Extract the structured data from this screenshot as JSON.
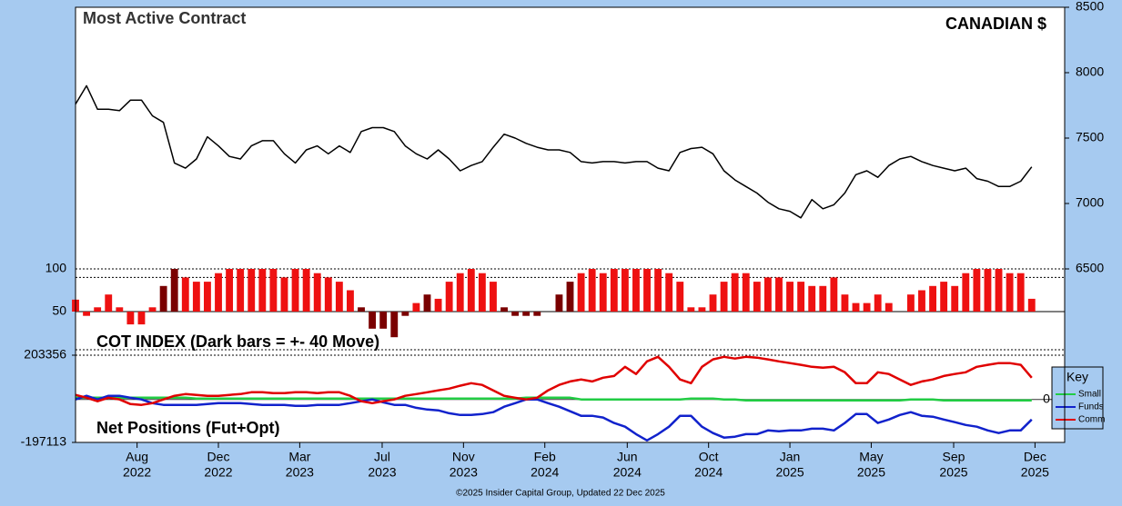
{
  "chart_data": [
    {
      "type": "line",
      "title": "Most Active Contract",
      "subtitle": "CANADIAN $",
      "color": "#000000",
      "xlim": [
        0,
        90
      ],
      "ylim": [
        6500,
        8500
      ],
      "yticks": [
        6500,
        7000,
        7500,
        8000,
        8500
      ],
      "values": [
        7760,
        7900,
        7720,
        7720,
        7710,
        7790,
        7790,
        7670,
        7620,
        7310,
        7270,
        7340,
        7510,
        7440,
        7360,
        7340,
        7440,
        7480,
        7480,
        7380,
        7310,
        7410,
        7440,
        7380,
        7440,
        7390,
        7550,
        7580,
        7580,
        7550,
        7440,
        7380,
        7340,
        7410,
        7340,
        7250,
        7290,
        7320,
        7430,
        7530,
        7500,
        7460,
        7430,
        7410,
        7410,
        7390,
        7320,
        7310,
        7320,
        7320,
        7310,
        7320,
        7320,
        7270,
        7250,
        7390,
        7420,
        7430,
        7380,
        7250,
        7180,
        7130,
        7080,
        7010,
        6960,
        6940,
        6890,
        7030,
        6960,
        6990,
        7080,
        7220,
        7250,
        7200,
        7290,
        7340,
        7360,
        7320,
        7290,
        7270,
        7250,
        7270,
        7190,
        7170,
        7130,
        7130,
        7170,
        7280
      ]
    },
    {
      "type": "bar",
      "title": "COT INDEX (Dark bars = +- 40 Move)",
      "color": "#ee1111",
      "dark_color": "#7a0000",
      "dark_bars": [
        8,
        9,
        26,
        27,
        28,
        29,
        30,
        32,
        39,
        40,
        41,
        42,
        43,
        44,
        45
      ],
      "baseline": 50,
      "hlines": [
        90
      ],
      "xlim": [
        0,
        90
      ],
      "ylim": [
        0,
        100
      ],
      "yticks": [
        50,
        100
      ],
      "values": [
        64,
        45,
        55,
        70,
        55,
        35,
        35,
        55,
        80,
        100,
        90,
        85,
        85,
        95,
        100,
        100,
        100,
        100,
        100,
        90,
        100,
        100,
        95,
        90,
        85,
        75,
        55,
        30,
        30,
        20,
        45,
        60,
        70,
        65,
        85,
        95,
        100,
        95,
        85,
        55,
        45,
        45,
        45,
        50,
        70,
        85,
        95,
        100,
        95,
        100,
        100,
        100,
        100,
        100,
        95,
        85,
        55,
        55,
        70,
        85,
        95,
        95,
        85,
        90,
        90,
        85,
        85,
        80,
        80,
        90,
        70,
        60,
        60,
        70,
        60,
        50,
        70,
        75,
        80,
        85,
        80,
        95,
        100,
        100,
        100,
        95,
        95,
        65
      ]
    },
    {
      "type": "line",
      "title": "Net Positions (Fut+Opt)",
      "legend_title": "Key",
      "legend": "right",
      "xlim": [
        0,
        90
      ],
      "ylim": [
        -197113,
        203356
      ],
      "yticks": [
        -197113,
        0,
        203356
      ],
      "xticks": [
        {
          "value": 5.6,
          "label": [
            "Aug",
            "2022"
          ]
        },
        {
          "value": 13.0,
          "label": [
            "Dec",
            "2022"
          ]
        },
        {
          "value": 20.4,
          "label": [
            "Mar",
            "2023"
          ]
        },
        {
          "value": 27.9,
          "label": [
            "Jul",
            "2023"
          ]
        },
        {
          "value": 35.3,
          "label": [
            "Nov",
            "2023"
          ]
        },
        {
          "value": 42.7,
          "label": [
            "Feb",
            "2024"
          ]
        },
        {
          "value": 50.2,
          "label": [
            "Jun",
            "2024"
          ]
        },
        {
          "value": 57.6,
          "label": [
            "Oct",
            "2024"
          ]
        },
        {
          "value": 65.0,
          "label": [
            "Jan",
            "2025"
          ]
        },
        {
          "value": 72.4,
          "label": [
            "May",
            "2025"
          ]
        },
        {
          "value": 79.9,
          "label": [
            "Sep",
            "2025"
          ]
        },
        {
          "value": 87.3,
          "label": [
            "Dec",
            "2025"
          ]
        }
      ],
      "series": [
        {
          "name": "Small",
          "color": "#22cc44",
          "values": [
            8000,
            8000,
            8000,
            8000,
            8000,
            8000,
            8000,
            8000,
            8000,
            8000,
            8000,
            4000,
            4000,
            4000,
            4000,
            4000,
            4000,
            4000,
            4000,
            4000,
            4000,
            4000,
            4000,
            4000,
            4000,
            4000,
            4000,
            4000,
            4000,
            4000,
            4000,
            4000,
            4000,
            4000,
            4000,
            4000,
            4000,
            4000,
            4000,
            4000,
            4000,
            8000,
            8000,
            8000,
            8000,
            8000,
            0,
            0,
            0,
            0,
            0,
            0,
            0,
            0,
            0,
            0,
            4000,
            4000,
            4000,
            0,
            0,
            -4000,
            -4000,
            -4000,
            -4000,
            -4000,
            -4000,
            -4000,
            -4000,
            -4000,
            -4000,
            -4000,
            -4000,
            -4000,
            -4000,
            -4000,
            0,
            0,
            0,
            -4000,
            -4000,
            -4000,
            -4000,
            -4000,
            -4000,
            -4000,
            -4000,
            -4000
          ]
        },
        {
          "name": "Funds",
          "color": "#1122cc",
          "values": [
            0,
            17000,
            0,
            17000,
            17000,
            8000,
            0,
            -17000,
            -25000,
            -25000,
            -25000,
            -25000,
            -21000,
            -17000,
            -17000,
            -17000,
            -21000,
            -25000,
            -25000,
            -25000,
            -29000,
            -29000,
            -25000,
            -25000,
            -25000,
            -17000,
            -8000,
            0,
            -13000,
            -25000,
            -25000,
            -38000,
            -46000,
            -50000,
            -63000,
            -71000,
            -71000,
            -67000,
            -58000,
            -33000,
            -17000,
            0,
            0,
            -17000,
            -33000,
            -54000,
            -75000,
            -75000,
            -83000,
            -108000,
            -125000,
            -159000,
            -188000,
            -159000,
            -125000,
            -75000,
            -75000,
            -125000,
            -154000,
            -175000,
            -171000,
            -159000,
            -159000,
            -142000,
            -146000,
            -142000,
            -142000,
            -134000,
            -134000,
            -142000,
            -108000,
            -67000,
            -67000,
            -108000,
            -92000,
            -71000,
            -58000,
            -75000,
            -79000,
            -92000,
            -104000,
            -117000,
            -125000,
            -142000,
            -154000,
            -142000,
            -142000,
            -92000
          ]
        },
        {
          "name": "Comm",
          "color": "#e00000",
          "values": [
            21000,
            8000,
            -8000,
            8000,
            0,
            -21000,
            -25000,
            -17000,
            0,
            17000,
            25000,
            21000,
            17000,
            17000,
            21000,
            25000,
            33000,
            33000,
            29000,
            29000,
            33000,
            33000,
            29000,
            33000,
            33000,
            17000,
            -8000,
            -17000,
            -8000,
            0,
            17000,
            25000,
            33000,
            42000,
            50000,
            63000,
            75000,
            67000,
            42000,
            17000,
            8000,
            0,
            8000,
            42000,
            67000,
            83000,
            92000,
            83000,
            100000,
            108000,
            150000,
            117000,
            175000,
            196000,
            150000,
            92000,
            75000,
            150000,
            184000,
            196000,
            188000,
            196000,
            192000,
            184000,
            175000,
            167000,
            159000,
            150000,
            146000,
            150000,
            125000,
            75000,
            75000,
            125000,
            117000,
            92000,
            67000,
            83000,
            92000,
            108000,
            117000,
            125000,
            150000,
            159000,
            167000,
            167000,
            159000,
            100000
          ]
        }
      ]
    }
  ],
  "footer": "©2025 Insider Capital Group, Updated 22 Dec 2025"
}
